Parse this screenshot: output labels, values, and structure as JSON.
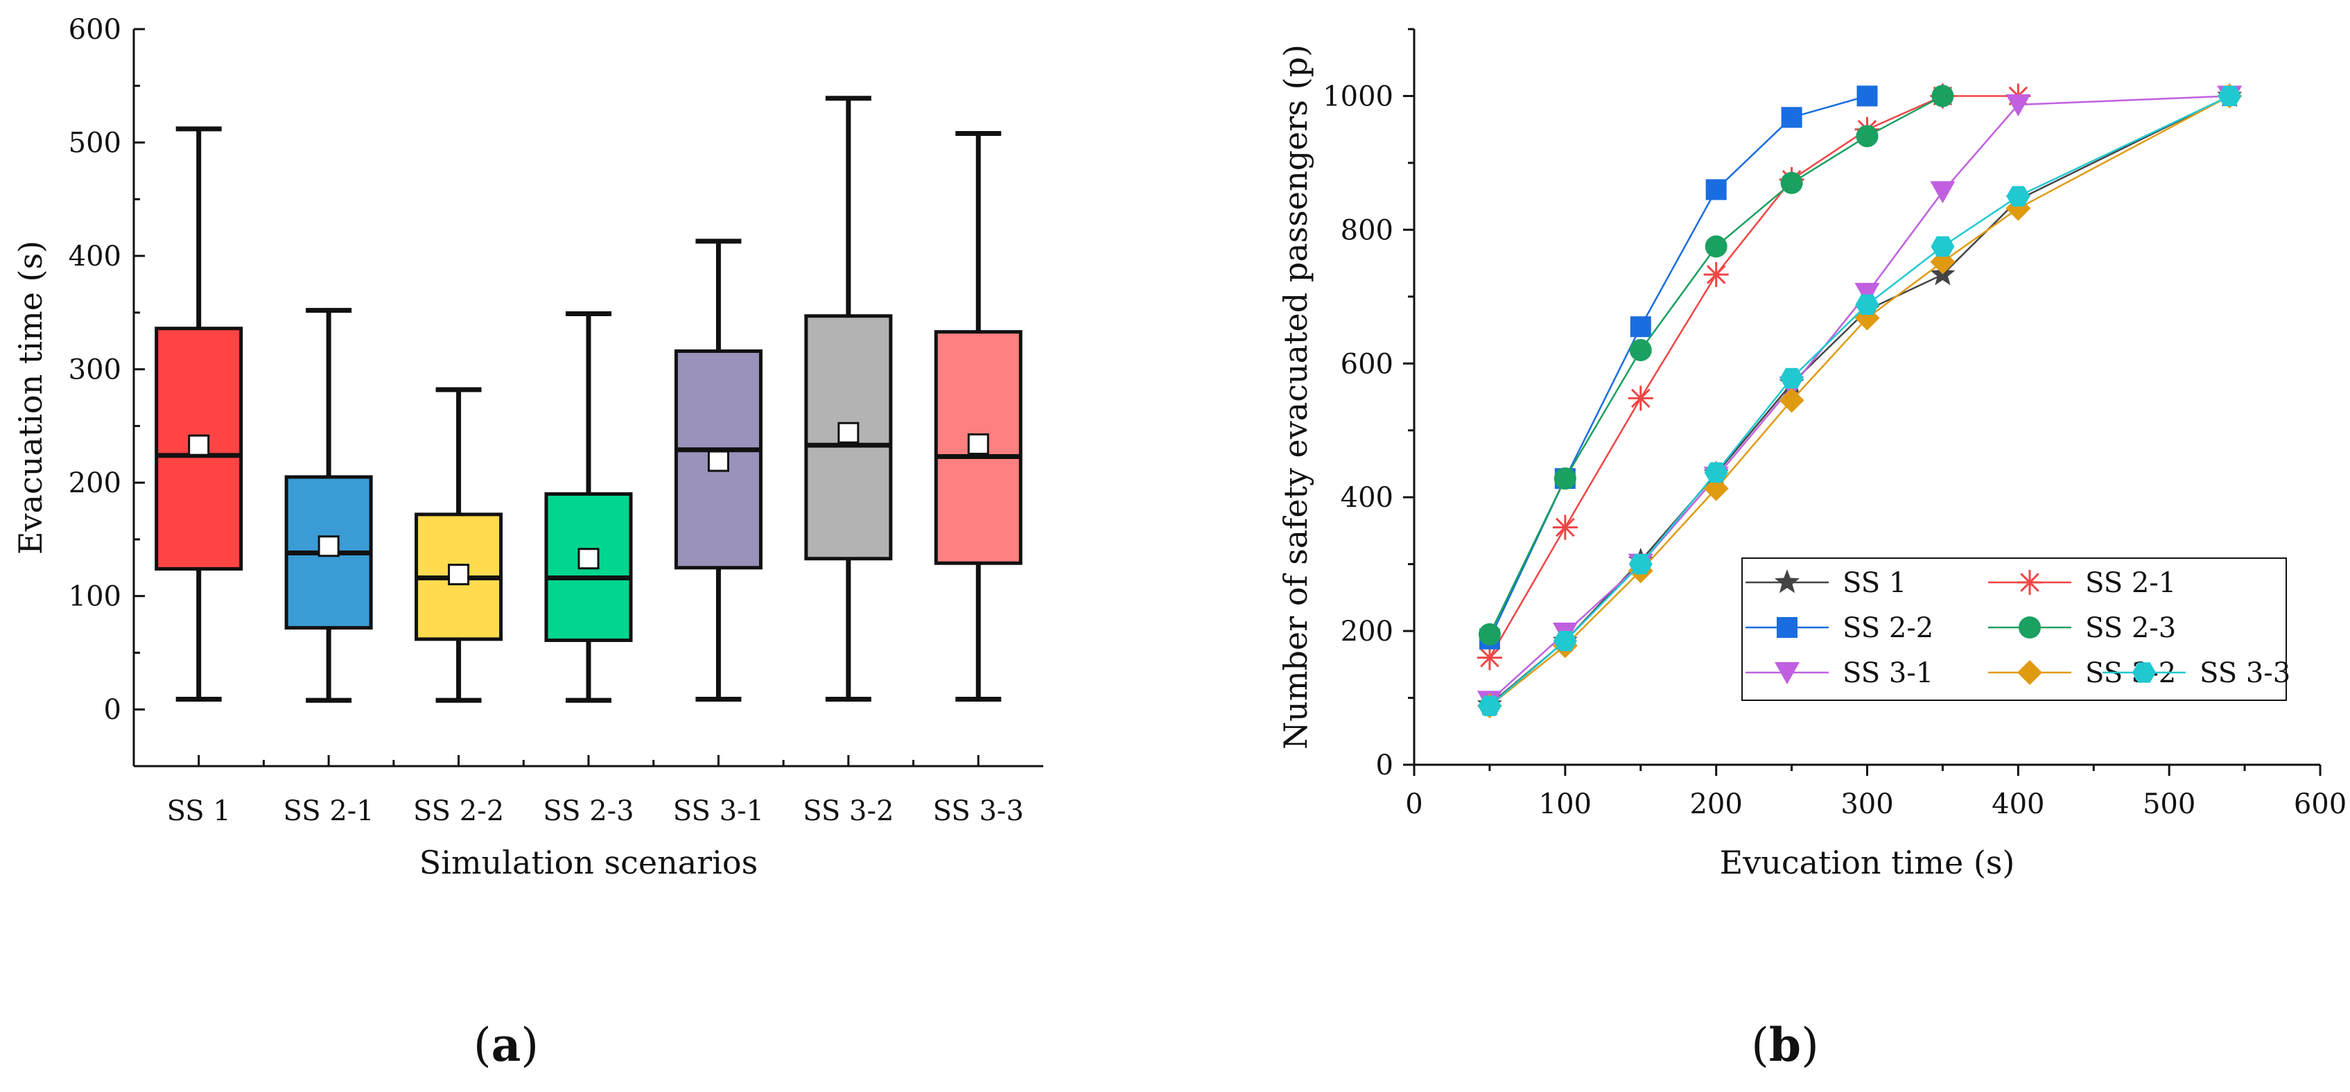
{
  "chart_data": [
    {
      "type": "box",
      "panel_label": "a",
      "title": "",
      "xlabel": "Simulation scenarios",
      "ylabel": "Evacuation time (s)",
      "ylim": [
        -50,
        600
      ],
      "yticks": [
        0,
        100,
        200,
        300,
        400,
        500,
        600
      ],
      "categories": [
        "SS 1",
        "SS 2-1",
        "SS 2-2",
        "SS 2-3",
        "SS 3-1",
        "SS 3-2",
        "SS 3-3"
      ],
      "boxes": [
        {
          "label": "SS 1",
          "min": 9,
          "q1": 124,
          "median": 224,
          "q3": 336,
          "max": 512,
          "mean": 233,
          "color": "#ff4444"
        },
        {
          "label": "SS 2-1",
          "min": 8,
          "q1": 72,
          "median": 138,
          "q3": 205,
          "max": 352,
          "mean": 144,
          "color": "#3a9bd5"
        },
        {
          "label": "SS 2-2",
          "min": 8,
          "q1": 62,
          "median": 116,
          "q3": 172,
          "max": 282,
          "mean": 119,
          "color": "#ffdb4d"
        },
        {
          "label": "SS 2-3",
          "min": 8,
          "q1": 61,
          "median": 116,
          "q3": 190,
          "max": 349,
          "mean": 133,
          "color": "#00d68f"
        },
        {
          "label": "SS 3-1",
          "min": 9,
          "q1": 125,
          "median": 229,
          "q3": 316,
          "max": 413,
          "mean": 219,
          "color": "#9b92bb"
        },
        {
          "label": "SS 3-2",
          "min": 9,
          "q1": 133,
          "median": 233,
          "q3": 347,
          "max": 539,
          "mean": 244,
          "color": "#b3b3b3"
        },
        {
          "label": "SS 3-3",
          "min": 9,
          "q1": 129,
          "median": 223,
          "q3": 333,
          "max": 508,
          "mean": 234,
          "color": "#ff8080"
        }
      ]
    },
    {
      "type": "line",
      "panel_label": "b",
      "title": "",
      "xlabel": "Evucation time (s)",
      "ylabel": "Number of safety evacuated passengers (p)",
      "xlim": [
        0,
        600
      ],
      "ylim": [
        0,
        1100
      ],
      "xticks": [
        0,
        100,
        200,
        300,
        400,
        500,
        600
      ],
      "yticks": [
        0,
        200,
        400,
        600,
        800,
        1000
      ],
      "legend_position": "bottom-right",
      "series": [
        {
          "name": "SS 1",
          "marker": "star",
          "color": "#444444",
          "x": [
            50,
            100,
            150,
            200,
            250,
            300,
            350,
            400,
            540
          ],
          "y": [
            90,
            185,
            305,
            435,
            570,
            680,
            733,
            845,
            1000
          ]
        },
        {
          "name": "SS 2-1",
          "marker": "asterisk",
          "color": "#f04545",
          "x": [
            50,
            100,
            150,
            200,
            250,
            300,
            350,
            400
          ],
          "y": [
            160,
            355,
            548,
            733,
            875,
            950,
            1000,
            1000
          ]
        },
        {
          "name": "SS 2-2",
          "marker": "square",
          "color": "#1a6de0",
          "x": [
            50,
            100,
            150,
            200,
            250,
            300
          ],
          "y": [
            188,
            428,
            655,
            860,
            968,
            1000
          ]
        },
        {
          "name": "SS 2-3",
          "marker": "circle",
          "color": "#1aa060",
          "x": [
            50,
            100,
            150,
            200,
            250,
            300,
            350
          ],
          "y": [
            195,
            428,
            620,
            775,
            870,
            940,
            1000
          ]
        },
        {
          "name": "SS 3-1",
          "marker": "triangle-down",
          "color": "#c060e0",
          "x": [
            50,
            100,
            150,
            200,
            250,
            300,
            350,
            400,
            540
          ],
          "y": [
            95,
            197,
            300,
            430,
            565,
            705,
            857,
            987,
            1000
          ]
        },
        {
          "name": "SS 3-2",
          "marker": "diamond",
          "color": "#e09a10",
          "x": [
            50,
            100,
            150,
            200,
            250,
            300,
            350,
            400,
            540
          ],
          "y": [
            88,
            178,
            290,
            413,
            545,
            668,
            752,
            832,
            1000
          ]
        },
        {
          "name": "SS 3-3",
          "marker": "hexagon",
          "color": "#20c8d0",
          "x": [
            50,
            100,
            150,
            200,
            250,
            300,
            350,
            400,
            540
          ],
          "y": [
            88,
            185,
            300,
            437,
            578,
            688,
            775,
            850,
            1000
          ]
        }
      ]
    }
  ]
}
